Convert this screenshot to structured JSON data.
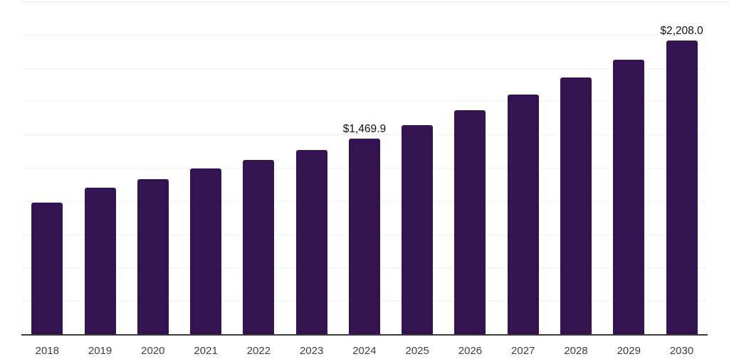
{
  "chart_data": {
    "type": "bar",
    "title": "",
    "xlabel": "",
    "ylabel": "",
    "categories": [
      "2018",
      "2019",
      "2020",
      "2021",
      "2022",
      "2023",
      "2024",
      "2025",
      "2026",
      "2027",
      "2028",
      "2029",
      "2030"
    ],
    "values": [
      988,
      1099,
      1166,
      1243,
      1309,
      1385,
      1469.9,
      1573.1,
      1683.5,
      1801.7,
      1928.1,
      2063.5,
      2208.0
    ],
    "data_labels": [
      "",
      "",
      "",
      "",
      "",
      "",
      "$1,469.9",
      "",
      "",
      "",
      "",
      "",
      "$2,208.0"
    ],
    "ylim": [
      0,
      2500
    ],
    "grid": "on",
    "gridline_interval": 250,
    "legend": "none",
    "colors": {
      "bar": "#331450",
      "gridline": "#f0f0f0",
      "top_gridline": "#e8e8e8",
      "axis_line": "#3a3a3a",
      "x_label": "#3f3f3f",
      "value_label": "#111111",
      "background": "#ffffff"
    }
  }
}
